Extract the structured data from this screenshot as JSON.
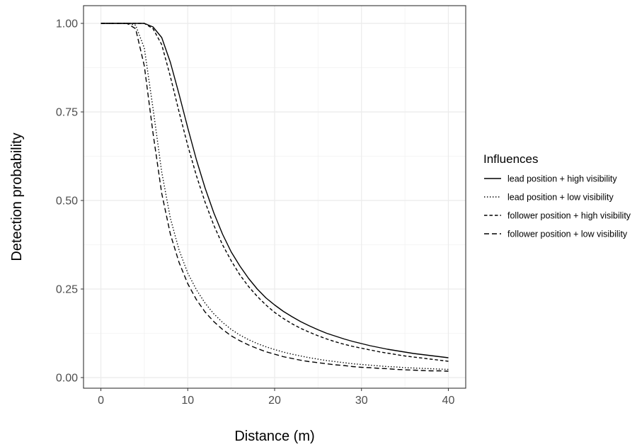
{
  "chart_data": {
    "type": "line",
    "title": "",
    "xlabel": "Distance (m)",
    "ylabel": "Detection probability",
    "xlim": [
      -2,
      42
    ],
    "ylim": [
      -0.03,
      1.05
    ],
    "x_ticks": [
      0,
      10,
      20,
      30,
      40
    ],
    "y_ticks": [
      0.0,
      0.25,
      0.5,
      0.75,
      1.0
    ],
    "x_tick_labels": [
      "0",
      "10",
      "20",
      "30",
      "40"
    ],
    "y_tick_labels": [
      "0.00",
      "0.25",
      "0.50",
      "0.75",
      "1.00"
    ],
    "grid": true,
    "legend": {
      "title": "Influences",
      "placement": "right"
    },
    "x": [
      0,
      1,
      2,
      3,
      4,
      5,
      6,
      7,
      8,
      9,
      10,
      11,
      12,
      13,
      14,
      15,
      16,
      17,
      18,
      19,
      20,
      21,
      22,
      23,
      24,
      25,
      26,
      27,
      28,
      29,
      30,
      31,
      32,
      33,
      34,
      35,
      36,
      37,
      38,
      39,
      40
    ],
    "series": [
      {
        "name": "lead position + high visibility",
        "dash": "solid",
        "values": [
          1.0,
          1.0,
          1.0,
          1.0,
          1.0,
          1.0,
          0.99,
          0.96,
          0.89,
          0.8,
          0.705,
          0.615,
          0.535,
          0.465,
          0.405,
          0.355,
          0.315,
          0.28,
          0.25,
          0.225,
          0.205,
          0.187,
          0.172,
          0.158,
          0.146,
          0.135,
          0.125,
          0.117,
          0.109,
          0.102,
          0.096,
          0.09,
          0.085,
          0.08,
          0.076,
          0.072,
          0.068,
          0.065,
          0.062,
          0.059,
          0.056
        ]
      },
      {
        "name": "lead position + low visibility",
        "dash": "dotted",
        "values": [
          1.0,
          1.0,
          1.0,
          1.0,
          0.995,
          0.93,
          0.76,
          0.58,
          0.45,
          0.36,
          0.295,
          0.248,
          0.21,
          0.18,
          0.156,
          0.136,
          0.12,
          0.107,
          0.096,
          0.087,
          0.079,
          0.072,
          0.066,
          0.061,
          0.056,
          0.052,
          0.048,
          0.045,
          0.042,
          0.039,
          0.037,
          0.035,
          0.033,
          0.031,
          0.03,
          0.028,
          0.027,
          0.026,
          0.025,
          0.024,
          0.023
        ]
      },
      {
        "name": "follower position + high visibility",
        "dash": "dashed",
        "values": [
          1.0,
          1.0,
          1.0,
          1.0,
          1.0,
          1.0,
          0.985,
          0.94,
          0.85,
          0.75,
          0.655,
          0.57,
          0.495,
          0.43,
          0.375,
          0.33,
          0.29,
          0.257,
          0.229,
          0.205,
          0.184,
          0.167,
          0.152,
          0.139,
          0.128,
          0.118,
          0.109,
          0.101,
          0.094,
          0.088,
          0.083,
          0.078,
          0.073,
          0.069,
          0.065,
          0.061,
          0.058,
          0.055,
          0.052,
          0.049,
          0.046
        ]
      },
      {
        "name": "follower position + low visibility",
        "dash": "longdash",
        "values": [
          1.0,
          1.0,
          1.0,
          1.0,
          0.985,
          0.88,
          0.69,
          0.52,
          0.405,
          0.325,
          0.265,
          0.22,
          0.185,
          0.158,
          0.136,
          0.118,
          0.104,
          0.092,
          0.082,
          0.073,
          0.066,
          0.059,
          0.054,
          0.049,
          0.045,
          0.042,
          0.039,
          0.036,
          0.034,
          0.031,
          0.029,
          0.028,
          0.026,
          0.025,
          0.023,
          0.022,
          0.021,
          0.02,
          0.019,
          0.019,
          0.018
        ]
      }
    ]
  }
}
